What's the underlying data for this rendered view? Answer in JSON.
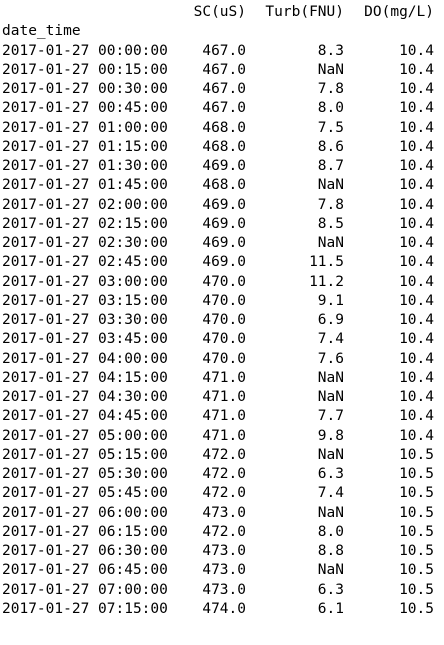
{
  "columns": [
    "SC(uS)",
    "Turb(FNU)",
    "DO(mg/L)"
  ],
  "index_name": "date_time",
  "rows": [
    [
      "2017-01-27 00:00:00",
      "467.0",
      "8.3",
      "10.4"
    ],
    [
      "2017-01-27 00:15:00",
      "467.0",
      "NaN",
      "10.4"
    ],
    [
      "2017-01-27 00:30:00",
      "467.0",
      "7.8",
      "10.4"
    ],
    [
      "2017-01-27 00:45:00",
      "467.0",
      "8.0",
      "10.4"
    ],
    [
      "2017-01-27 01:00:00",
      "468.0",
      "7.5",
      "10.4"
    ],
    [
      "2017-01-27 01:15:00",
      "468.0",
      "8.6",
      "10.4"
    ],
    [
      "2017-01-27 01:30:00",
      "469.0",
      "8.7",
      "10.4"
    ],
    [
      "2017-01-27 01:45:00",
      "468.0",
      "NaN",
      "10.4"
    ],
    [
      "2017-01-27 02:00:00",
      "469.0",
      "7.8",
      "10.4"
    ],
    [
      "2017-01-27 02:15:00",
      "469.0",
      "8.5",
      "10.4"
    ],
    [
      "2017-01-27 02:30:00",
      "469.0",
      "NaN",
      "10.4"
    ],
    [
      "2017-01-27 02:45:00",
      "469.0",
      "11.5",
      "10.4"
    ],
    [
      "2017-01-27 03:00:00",
      "470.0",
      "11.2",
      "10.4"
    ],
    [
      "2017-01-27 03:15:00",
      "470.0",
      "9.1",
      "10.4"
    ],
    [
      "2017-01-27 03:30:00",
      "470.0",
      "6.9",
      "10.4"
    ],
    [
      "2017-01-27 03:45:00",
      "470.0",
      "7.4",
      "10.4"
    ],
    [
      "2017-01-27 04:00:00",
      "470.0",
      "7.6",
      "10.4"
    ],
    [
      "2017-01-27 04:15:00",
      "471.0",
      "NaN",
      "10.4"
    ],
    [
      "2017-01-27 04:30:00",
      "471.0",
      "NaN",
      "10.4"
    ],
    [
      "2017-01-27 04:45:00",
      "471.0",
      "7.7",
      "10.4"
    ],
    [
      "2017-01-27 05:00:00",
      "471.0",
      "9.8",
      "10.4"
    ],
    [
      "2017-01-27 05:15:00",
      "472.0",
      "NaN",
      "10.5"
    ],
    [
      "2017-01-27 05:30:00",
      "472.0",
      "6.3",
      "10.5"
    ],
    [
      "2017-01-27 05:45:00",
      "472.0",
      "7.4",
      "10.5"
    ],
    [
      "2017-01-27 06:00:00",
      "473.0",
      "NaN",
      "10.5"
    ],
    [
      "2017-01-27 06:15:00",
      "472.0",
      "8.0",
      "10.5"
    ],
    [
      "2017-01-27 06:30:00",
      "473.0",
      "8.8",
      "10.5"
    ],
    [
      "2017-01-27 06:45:00",
      "473.0",
      "NaN",
      "10.5"
    ],
    [
      "2017-01-27 07:00:00",
      "473.0",
      "6.3",
      "10.5"
    ],
    [
      "2017-01-27 07:15:00",
      "474.0",
      "6.1",
      "10.5"
    ]
  ]
}
